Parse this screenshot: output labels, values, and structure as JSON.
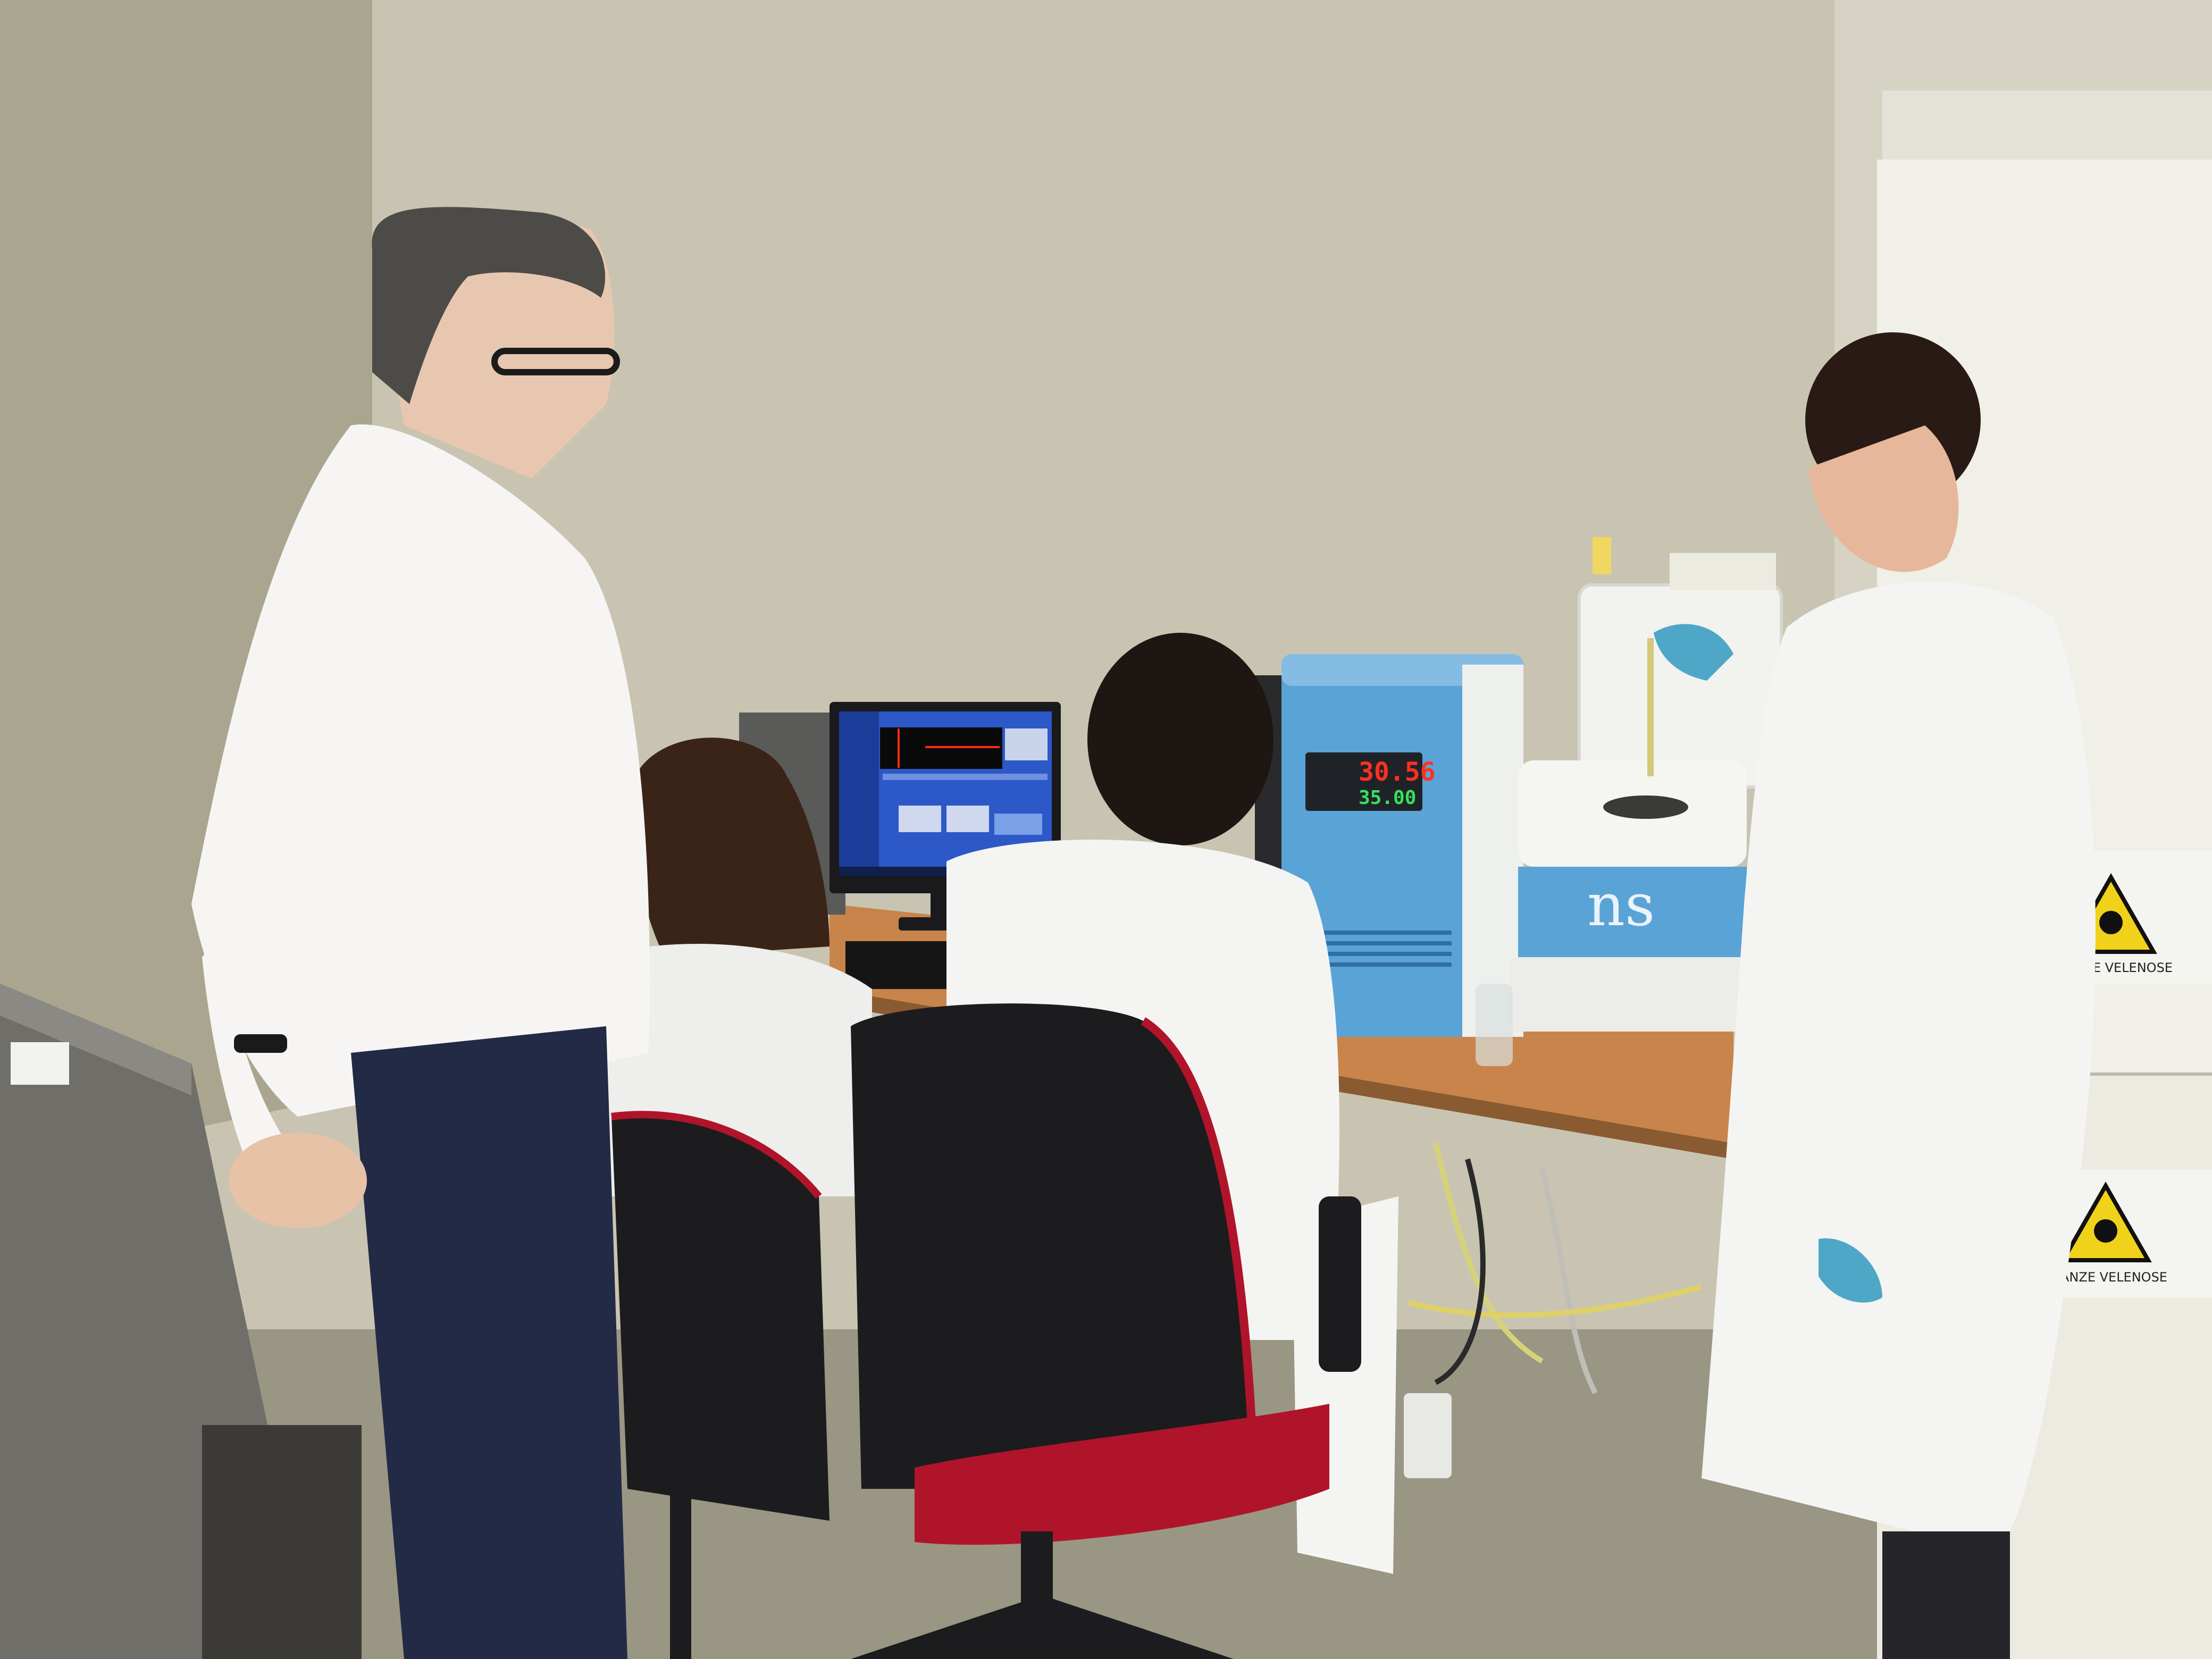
{
  "scene": {
    "description_free": true,
    "colors": {
      "wall_left": "#a9a48f",
      "wall_main": "#c9c4b2",
      "wall_right": "#d8d6c9",
      "floor": "#9a9684",
      "desk": "#c8844a",
      "instrument_blue": "#5aa3d6",
      "instrument_white": "#eef0ee",
      "coat_white": "#f4f4f2",
      "trousers_navy": "#232a45",
      "chair_black": "#1c1c1e",
      "chair_red": "#b0142a",
      "display_red": "#ff3020",
      "display_green": "#38e060",
      "hazard_yellow": "#f1d21a",
      "glove_blue": "#4fa7c8",
      "monitor_blue": "#2c58c8"
    },
    "instrument_display": {
      "temperature_reading": "30.56",
      "setpoint_reading": "35.00"
    },
    "hazard_labels": [
      {
        "text": "ANZE VELENOSE"
      },
      {
        "text": "ANZE VELENOSE"
      }
    ]
  }
}
